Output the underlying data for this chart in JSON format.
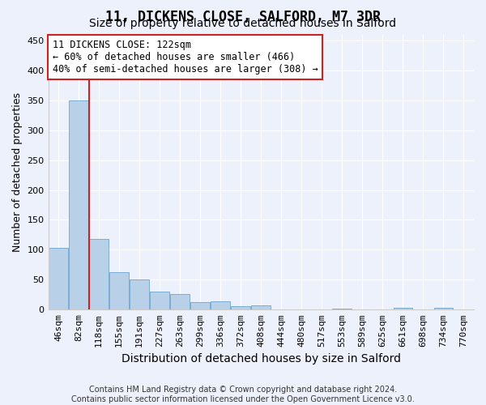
{
  "title": "11, DICKENS CLOSE, SALFORD, M7 3DR",
  "subtitle": "Size of property relative to detached houses in Salford",
  "xlabel": "Distribution of detached houses by size in Salford",
  "ylabel": "Number of detached properties",
  "categories": [
    "46sqm",
    "82sqm",
    "118sqm",
    "155sqm",
    "191sqm",
    "227sqm",
    "263sqm",
    "299sqm",
    "336sqm",
    "372sqm",
    "408sqm",
    "444sqm",
    "480sqm",
    "517sqm",
    "553sqm",
    "589sqm",
    "625sqm",
    "661sqm",
    "698sqm",
    "734sqm",
    "770sqm"
  ],
  "values": [
    103,
    350,
    118,
    63,
    50,
    30,
    26,
    12,
    14,
    6,
    7,
    0,
    0,
    0,
    2,
    0,
    0,
    3,
    0,
    3,
    0
  ],
  "bar_color": "#b8d0e8",
  "bar_edge_color": "#7aadd4",
  "vline_x_idx": 2,
  "vline_color": "#cc2222",
  "annotation_text": "11 DICKENS CLOSE: 122sqm\n← 60% of detached houses are smaller (466)\n40% of semi-detached houses are larger (308) →",
  "annotation_box_facecolor": "#ffffff",
  "annotation_box_edgecolor": "#cc2222",
  "footnote_line1": "Contains HM Land Registry data © Crown copyright and database right 2024.",
  "footnote_line2": "Contains public sector information licensed under the Open Government Licence v3.0.",
  "ylim": [
    0,
    460
  ],
  "yticks": [
    0,
    50,
    100,
    150,
    200,
    250,
    300,
    350,
    400,
    450
  ],
  "background_color": "#edf1fb",
  "grid_color": "#ffffff",
  "title_fontsize": 12,
  "subtitle_fontsize": 10,
  "ylabel_fontsize": 9,
  "xlabel_fontsize": 10,
  "tick_fontsize": 8,
  "annot_fontsize": 8.5,
  "footnote_fontsize": 7
}
